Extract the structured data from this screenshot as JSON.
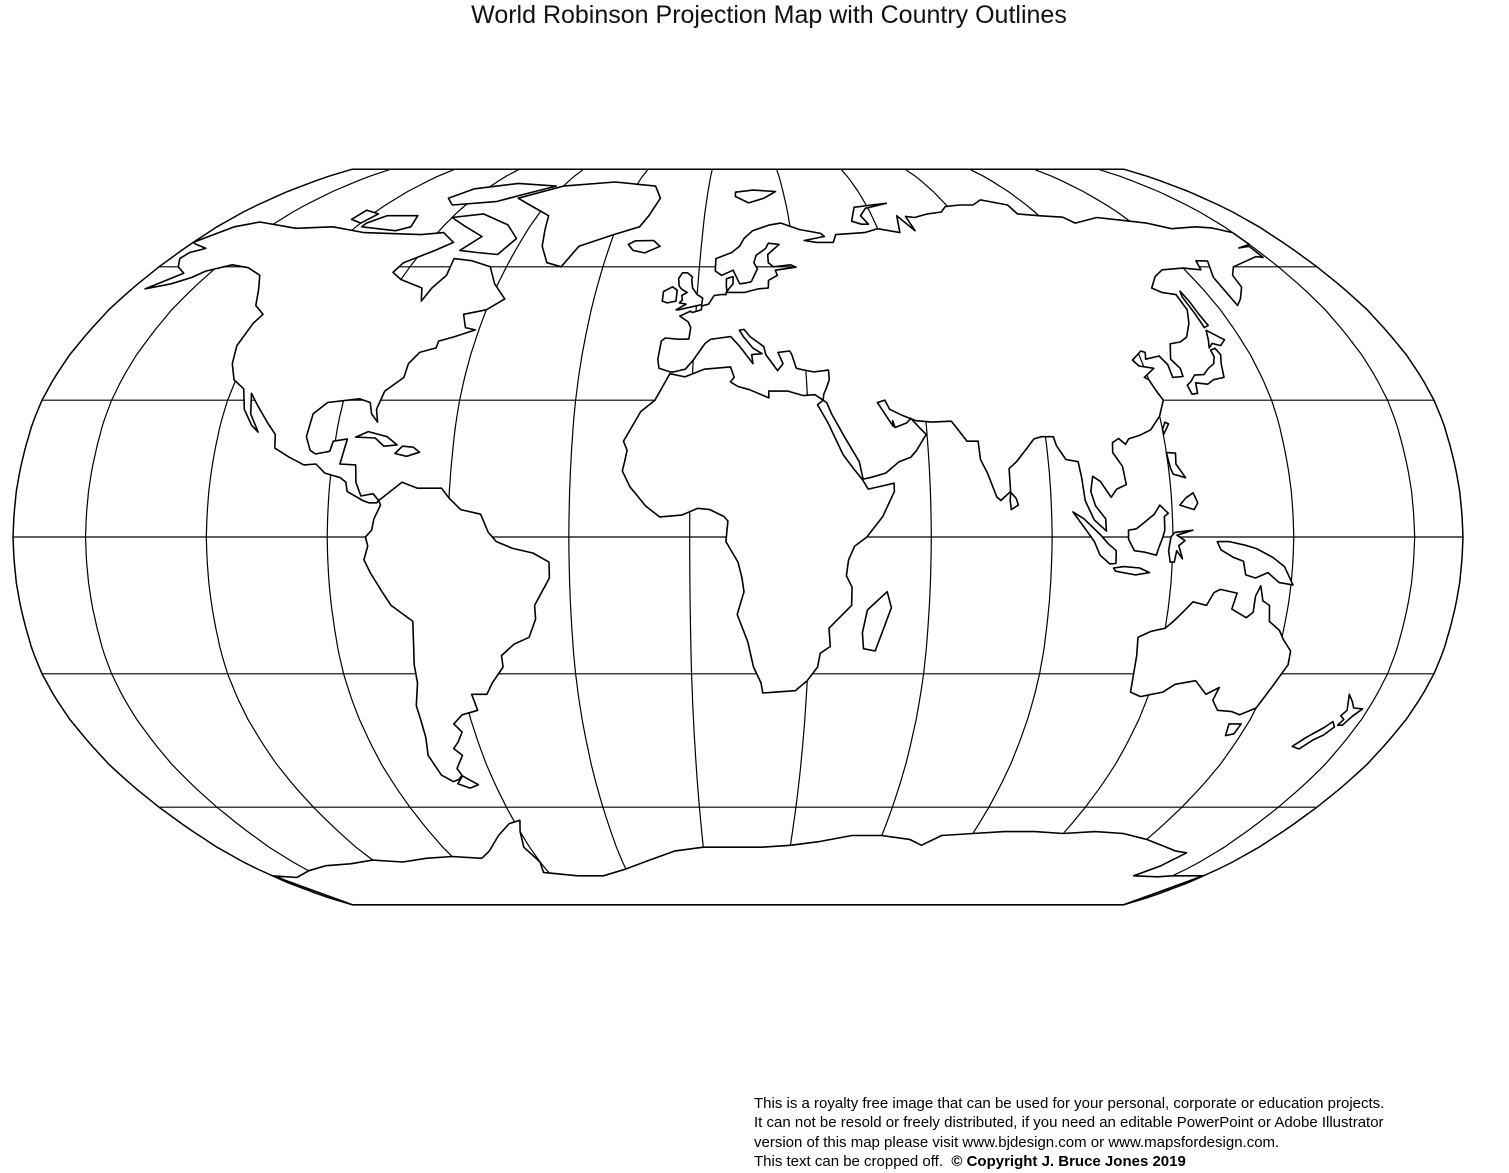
{
  "title": "World Robinson Projection Map with Country Outlines",
  "map": {
    "projection": "Robinson",
    "central_meridian_deg": 12,
    "graticule_step_deg": 30,
    "fill_color": "#ffffff",
    "line_color": "#000000",
    "labels_on_map": false
  },
  "footer": {
    "line1": "This is a royalty free image that can be used for your personal, corporate or education projects.",
    "line2": "It can not be resold or freely distributed, if you need an editable PowerPoint or Adobe Illustrator",
    "line3": "version of this map please visit www.bjdesign.com or www.mapsfordesign.com.",
    "line4": "This text can be cropped off.",
    "copyright": "© Copyright J. Bruce Jones 2019"
  }
}
